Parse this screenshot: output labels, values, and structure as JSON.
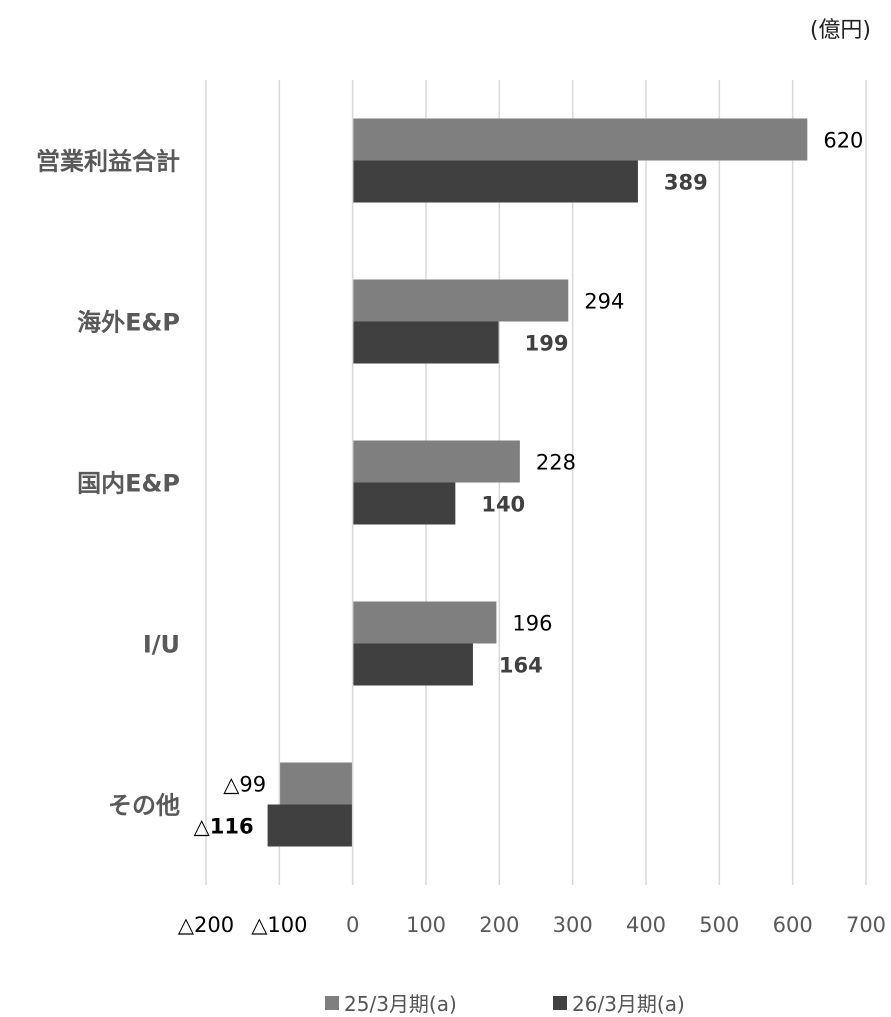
{
  "unit_label": "(億円)",
  "colors": {
    "prev": "#7f7f7f",
    "curr": "#404040",
    "grid": "#d9d9d9",
    "category_text": "#595959"
  },
  "chart_data": {
    "type": "bar",
    "orientation": "horizontal",
    "categories": [
      "営業利益合計",
      "海外E&P",
      "国内E&P",
      "I/U",
      "その他"
    ],
    "series": [
      {
        "name": "25/3月期(a)",
        "values": [
          620,
          294,
          228,
          196,
          -99
        ]
      },
      {
        "name": "26/3月期(a)",
        "values": [
          389,
          199,
          140,
          164,
          -116
        ]
      }
    ],
    "data_labels": [
      [
        "620",
        "294",
        "228",
        "196",
        "△99"
      ],
      [
        "389",
        "199",
        "140",
        "164",
        "△116"
      ]
    ],
    "xlim": [
      -200,
      700
    ],
    "xticks": [
      -200,
      -100,
      0,
      100,
      200,
      300,
      400,
      500,
      600,
      700
    ],
    "xtick_labels": [
      "△200",
      "△100",
      "0",
      "100",
      "200",
      "300",
      "400",
      "500",
      "600",
      "700"
    ],
    "grid": true,
    "legend_position": "bottom"
  },
  "legend": {
    "prev": "25/3月期(a)",
    "curr": "26/3月期(a)"
  }
}
